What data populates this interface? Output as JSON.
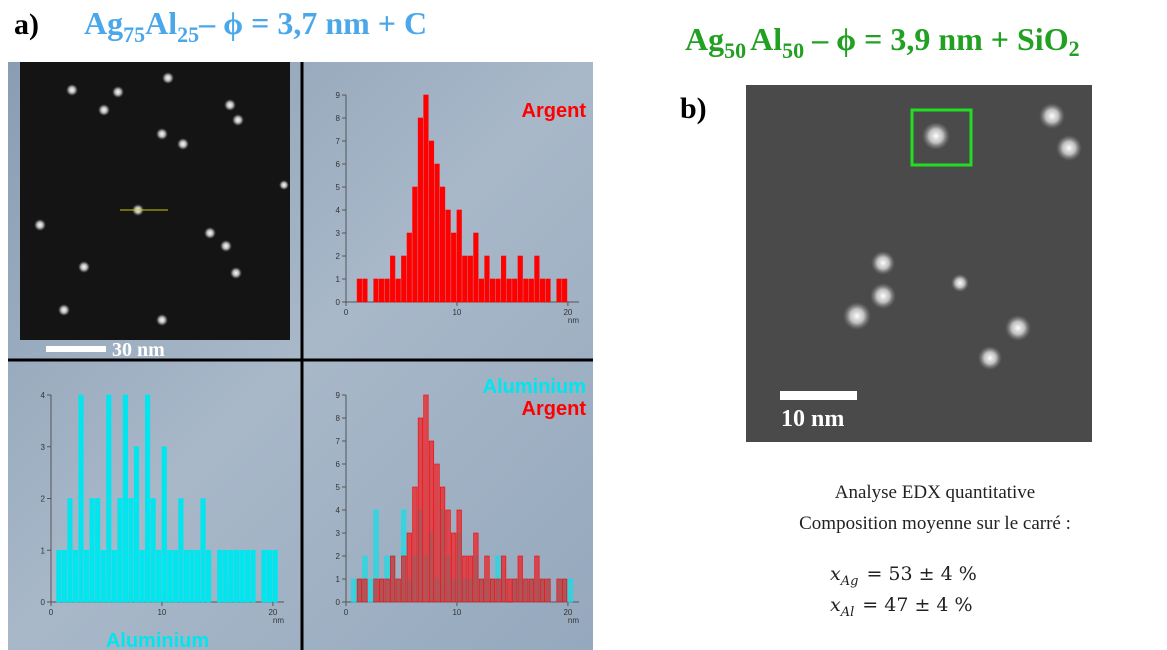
{
  "panel_a": {
    "label": "a)",
    "title": [
      "Ag",
      "75",
      "Al",
      "25",
      "– ϕ = 3,7 nm + C"
    ],
    "scale_bar": "30 nm"
  },
  "panel_b": {
    "label": "b)",
    "title": [
      "Ag",
      "50",
      "Al",
      "50",
      " – ϕ  = 3,9 nm + SiO",
      "2"
    ],
    "scale_bar": "10 nm",
    "lines": [
      "Analyse EDX quantitative",
      "Composition moyenne sur le carré :"
    ],
    "results": [
      {
        "symbol": "x",
        "subscript": "Ag",
        "value": "= 53 ± 4 %"
      },
      {
        "symbol": "x",
        "subscript": "Al",
        "value": "= 47 ± 4 %"
      }
    ]
  },
  "chart_data": [
    {
      "type": "histogram",
      "x_label": "nm",
      "legend": "upper right",
      "bins": [
        0.5,
        1,
        1.5,
        2,
        2.5,
        3,
        3.5,
        4,
        4.5,
        5,
        5.5,
        6,
        6.5,
        7,
        7.5,
        8,
        8.5,
        9,
        9.5,
        10,
        10.5,
        11,
        11.5,
        12,
        12.5,
        13,
        13.5,
        14,
        14.5,
        15,
        15.5,
        16,
        16.5,
        17,
        17.5,
        18,
        18.5,
        19,
        19.5,
        20,
        20.5
      ],
      "xlim": [
        0,
        21
      ],
      "xticks": [
        0,
        10,
        20
      ],
      "ylim": [
        0,
        9
      ],
      "yticks": [
        0,
        1,
        2,
        3,
        4,
        5,
        6,
        7,
        8,
        9
      ],
      "series": [
        {
          "name": "Argent",
          "color": "#ff0000",
          "values": [
            0,
            1,
            1,
            0,
            1,
            1,
            1,
            2,
            1,
            2,
            3,
            5,
            8,
            9,
            7,
            6,
            5,
            4,
            3,
            4,
            2,
            2,
            3,
            1,
            2,
            1,
            1,
            2,
            1,
            1,
            2,
            1,
            1,
            2,
            1,
            1,
            0,
            1,
            1,
            0
          ]
        }
      ]
    },
    {
      "type": "histogram",
      "x_label": "nm",
      "legend": "lower center",
      "bins": [
        0.5,
        1,
        1.5,
        2,
        2.5,
        3,
        3.5,
        4,
        4.5,
        5,
        5.5,
        6,
        6.5,
        7,
        7.5,
        8,
        8.5,
        9,
        9.5,
        10,
        10.5,
        11,
        11.5,
        12,
        12.5,
        13,
        13.5,
        14,
        14.5,
        15,
        15.5,
        16,
        16.5,
        17,
        17.5,
        18,
        18.5,
        19,
        19.5,
        20,
        20.5
      ],
      "xlim": [
        0,
        21
      ],
      "xticks": [
        0,
        10,
        20
      ],
      "ylim": [
        0,
        4
      ],
      "yticks": [
        0,
        1,
        2,
        3,
        4
      ],
      "series": [
        {
          "name": "Aluminium",
          "color": "#00e5ee",
          "values": [
            1,
            1,
            2,
            1,
            4,
            1,
            2,
            2,
            1,
            4,
            1,
            2,
            4,
            2,
            3,
            1,
            4,
            2,
            1,
            3,
            1,
            1,
            2,
            1,
            1,
            1,
            2,
            1,
            0,
            1,
            1,
            1,
            1,
            1,
            1,
            1,
            0,
            1,
            1,
            1
          ]
        }
      ]
    },
    {
      "type": "histogram",
      "x_label": "nm",
      "legend": "upper right",
      "bins": [
        0.5,
        1,
        1.5,
        2,
        2.5,
        3,
        3.5,
        4,
        4.5,
        5,
        5.5,
        6,
        6.5,
        7,
        7.5,
        8,
        8.5,
        9,
        9.5,
        10,
        10.5,
        11,
        11.5,
        12,
        12.5,
        13,
        13.5,
        14,
        14.5,
        15,
        15.5,
        16,
        16.5,
        17,
        17.5,
        18,
        18.5,
        19,
        19.5,
        20,
        20.5
      ],
      "xlim": [
        0,
        21
      ],
      "xticks": [
        0,
        10,
        20
      ],
      "ylim": [
        0,
        9
      ],
      "yticks": [
        0,
        1,
        2,
        3,
        4,
        5,
        6,
        7,
        8,
        9
      ],
      "series": [
        {
          "name": "Aluminium",
          "color": "#00e5ee",
          "values": [
            1,
            1,
            2,
            1,
            4,
            1,
            2,
            2,
            1,
            4,
            1,
            2,
            4,
            2,
            3,
            1,
            4,
            2,
            1,
            3,
            1,
            1,
            2,
            1,
            1,
            1,
            2,
            1,
            0,
            1,
            1,
            1,
            1,
            1,
            1,
            1,
            0,
            1,
            1,
            1
          ]
        },
        {
          "name": "Argent",
          "color": "#ff0000",
          "values": [
            0,
            1,
            1,
            0,
            1,
            1,
            1,
            2,
            1,
            2,
            3,
            5,
            8,
            9,
            7,
            6,
            5,
            4,
            3,
            4,
            2,
            2,
            3,
            1,
            2,
            1,
            1,
            2,
            1,
            1,
            2,
            1,
            1,
            2,
            1,
            1,
            0,
            1,
            1,
            0
          ]
        }
      ]
    }
  ]
}
